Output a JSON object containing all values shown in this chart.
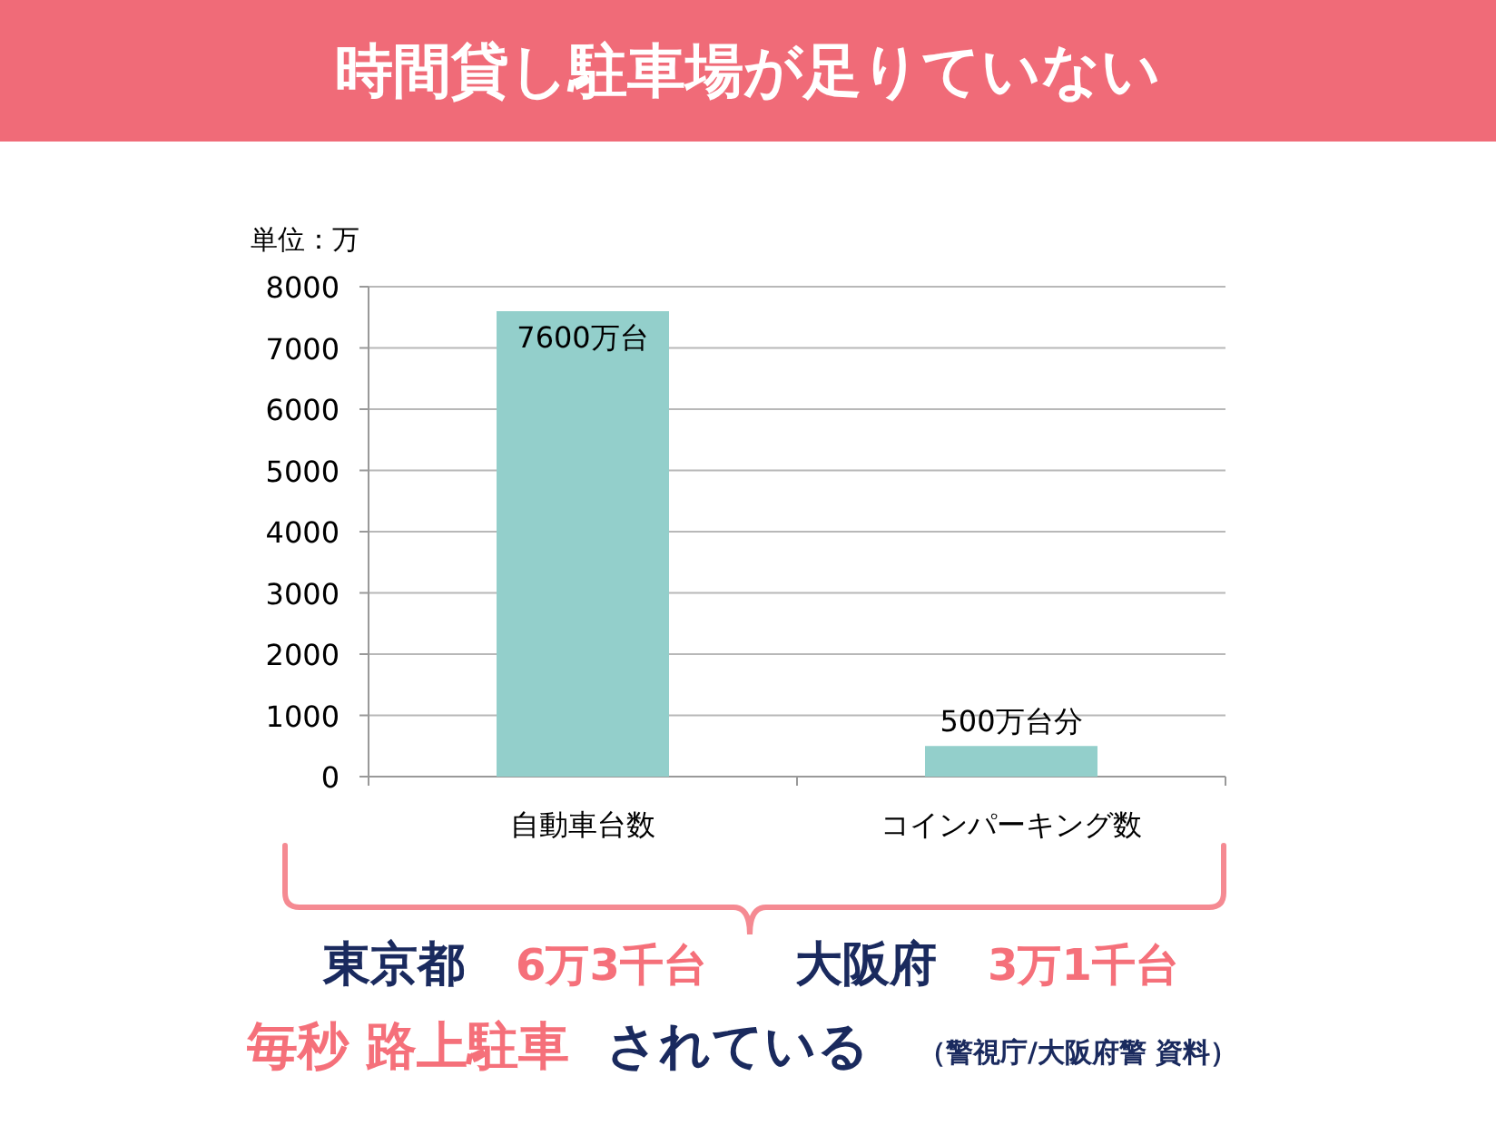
{
  "chart_data": {
    "type": "bar",
    "title": "時間貸し駐車場が足りていない",
    "ylabel": "単位：万",
    "categories": [
      "自動車台数",
      "コインパーキング数"
    ],
    "values": [
      7600,
      500
    ],
    "value_labels": [
      "7600万台",
      "500万台分"
    ],
    "color": "#93cfcb",
    "ylim": [
      0,
      8000
    ],
    "yticks": [
      0,
      1000,
      2000,
      3000,
      4000,
      5000,
      6000,
      7000,
      8000
    ],
    "grid": "y",
    "annotations": [
      "東京都",
      "6万3千台",
      "大阪府",
      "3万1千台",
      "毎秒 路上駐車",
      "されている",
      "（警視庁/大阪府警 資料）"
    ]
  }
}
